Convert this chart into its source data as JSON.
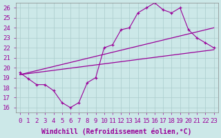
{
  "background_color": "#cce8e8",
  "line_color": "#990099",
  "marker": "+",
  "xlabel": "Windchill (Refroidissement éolien,°C)",
  "ylabel_ticks": [
    16,
    17,
    18,
    19,
    20,
    21,
    22,
    23,
    24,
    25,
    26
  ],
  "xtick_labels": [
    "0",
    "1",
    "2",
    "3",
    "4",
    "5",
    "6",
    "7",
    "8",
    "9",
    "10",
    "11",
    "12",
    "13",
    "14",
    "15",
    "16",
    "17",
    "18",
    "19",
    "20",
    "21",
    "22",
    "23"
  ],
  "xlim": [
    -0.5,
    23.5
  ],
  "ylim": [
    15.5,
    26.5
  ],
  "series1_x": [
    0,
    1,
    2,
    3,
    4,
    5,
    6,
    7,
    8,
    9,
    10,
    11,
    12,
    13,
    14,
    15,
    16,
    17,
    18,
    19,
    20,
    21,
    22,
    23
  ],
  "series1_y": [
    19.5,
    18.9,
    18.3,
    18.3,
    17.7,
    16.5,
    16.0,
    16.5,
    18.5,
    19.0,
    22.0,
    22.3,
    23.8,
    24.0,
    25.5,
    26.0,
    26.5,
    25.8,
    25.5,
    26.0,
    23.8,
    23.0,
    22.5,
    22.0
  ],
  "series2_x": [
    0,
    23
  ],
  "series2_y": [
    19.3,
    21.8
  ],
  "series3_x": [
    0,
    23
  ],
  "series3_y": [
    19.3,
    24.0
  ],
  "grid_color": "#aacccc",
  "xlabel_fontsize": 7,
  "tick_fontsize": 6.5
}
